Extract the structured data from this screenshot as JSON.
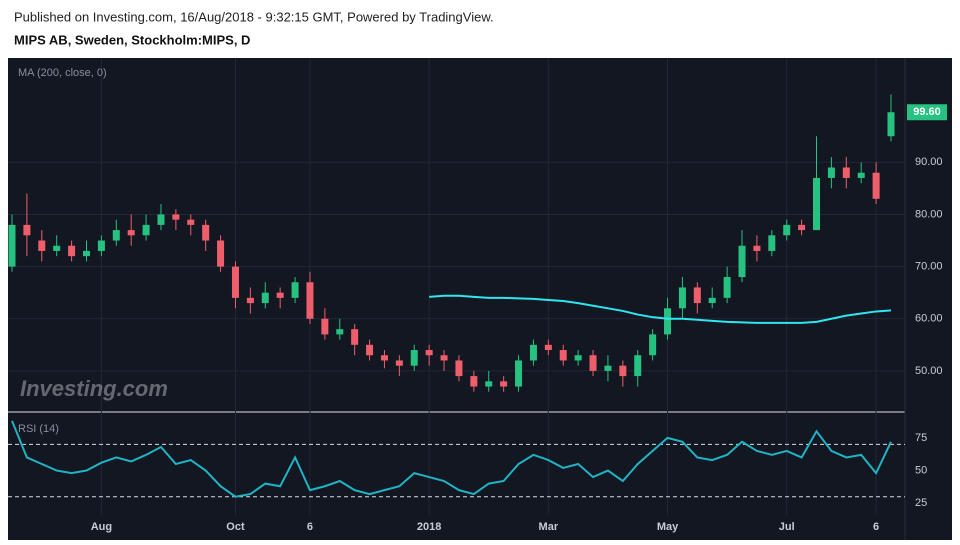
{
  "header": {
    "published": "Published on Investing.com, 16/Aug/2018 - 9:32:15 GMT, Powered by TradingView.",
    "symbol": "MIPS AB, Sweden, Stockholm:MIPS, D"
  },
  "watermark": "Investing.com",
  "chart_data": [
    {
      "type": "candlestick",
      "categories": [
        null,
        null,
        null,
        null,
        null,
        null,
        "Aug",
        null,
        null,
        null,
        null,
        null,
        null,
        null,
        null,
        "Oct",
        null,
        null,
        null,
        null,
        "6",
        null,
        null,
        null,
        null,
        null,
        null,
        null,
        "2018",
        null,
        null,
        null,
        null,
        null,
        null,
        null,
        "Mar",
        null,
        null,
        null,
        null,
        null,
        null,
        null,
        "May",
        null,
        null,
        null,
        null,
        null,
        null,
        null,
        "Jul",
        null,
        null,
        null,
        null,
        null,
        "6",
        null
      ],
      "open": [
        70,
        78,
        75,
        73,
        74,
        72,
        73,
        75,
        77,
        76,
        78,
        80,
        79,
        78,
        75,
        70,
        64,
        63,
        65,
        64,
        67,
        60,
        57,
        58,
        55,
        53,
        52,
        51,
        54,
        53,
        52,
        49,
        47,
        48,
        47,
        52,
        55,
        54,
        52,
        53,
        50,
        51,
        49,
        53,
        57,
        62,
        66,
        63,
        64,
        68,
        74,
        73,
        76,
        78,
        77,
        87,
        89,
        87,
        88,
        95
      ],
      "high": [
        80,
        84,
        77,
        76,
        75,
        75,
        76,
        79,
        80,
        80,
        82,
        81,
        80,
        79,
        76,
        71,
        66,
        67,
        66,
        68,
        69,
        62,
        60,
        59,
        56,
        54,
        53,
        55,
        55,
        54,
        53,
        50,
        50,
        49,
        53,
        56,
        56,
        55,
        54,
        54,
        53,
        52,
        54,
        58,
        64,
        68,
        67,
        66,
        70,
        77,
        76,
        77,
        79,
        79,
        95,
        91,
        91,
        90,
        90,
        103
      ],
      "low": [
        69,
        72,
        71,
        72,
        71,
        71,
        72,
        74,
        74,
        75,
        77,
        77,
        76,
        73,
        69,
        62,
        61,
        62,
        62,
        63,
        59,
        56,
        56,
        53,
        52,
        50.5,
        49,
        50,
        51,
        50,
        48,
        46,
        46,
        46,
        46,
        51,
        53,
        51,
        51,
        49,
        48,
        47,
        47,
        52,
        56,
        60,
        61,
        62,
        63,
        67,
        71,
        72,
        75,
        76,
        77,
        85,
        85,
        86,
        82,
        94
      ],
      "close": [
        78,
        76,
        73,
        74,
        72,
        73,
        75,
        77,
        76,
        78,
        80,
        79,
        78,
        75,
        70,
        64,
        63,
        65,
        64,
        67,
        60,
        57,
        58,
        55,
        53,
        52,
        51,
        54,
        53,
        52,
        49,
        47,
        48,
        47,
        52,
        55,
        54,
        52,
        53,
        50,
        51,
        49,
        53,
        57,
        62,
        66,
        63,
        64,
        68,
        74,
        73,
        76,
        78,
        77,
        87,
        89,
        87,
        88,
        83,
        99.6
      ],
      "last_label": "99.60",
      "up_color": "#26c281",
      "down_color": "#ef5f6b",
      "ylim": [
        42.5,
        110
      ],
      "yticks": [
        {
          "value": 50,
          "label": "50.00"
        },
        {
          "value": 60,
          "label": "60.00"
        },
        {
          "value": 70,
          "label": "70.00"
        },
        {
          "value": 80,
          "label": "80.00"
        },
        {
          "value": 90,
          "label": "90.00"
        }
      ],
      "grid": true,
      "overlay": {
        "name": "MA (200, close, 0)",
        "color": "#2ee6f0",
        "values": [
          null,
          null,
          null,
          null,
          null,
          null,
          null,
          null,
          null,
          null,
          null,
          null,
          null,
          null,
          null,
          null,
          null,
          null,
          null,
          null,
          null,
          null,
          null,
          null,
          null,
          null,
          null,
          null,
          64.2,
          64.4,
          64.4,
          64.2,
          64,
          64,
          63.9,
          63.8,
          63.6,
          63.4,
          63,
          62.5,
          62,
          61.5,
          60.8,
          60.3,
          60,
          60,
          59.8,
          59.6,
          59.4,
          59.3,
          59.2,
          59.2,
          59.2,
          59.2,
          59.4,
          60,
          60.6,
          61,
          61.4,
          61.6
        ]
      }
    },
    {
      "type": "line",
      "name": "RSI (14)",
      "color": "#1fb3c4",
      "values": [
        88,
        60,
        55,
        50,
        48,
        50,
        56,
        60,
        57,
        62,
        68,
        55,
        58,
        50,
        38,
        30,
        32,
        40,
        38,
        60,
        35,
        38,
        42,
        35,
        32,
        35,
        38,
        48,
        45,
        42,
        35,
        32,
        40,
        42,
        55,
        62,
        58,
        52,
        55,
        45,
        50,
        42,
        55,
        65,
        75,
        72,
        60,
        58,
        62,
        72,
        65,
        62,
        65,
        60,
        80,
        65,
        60,
        62,
        48,
        72
      ],
      "ylim": [
        16,
        94
      ],
      "yticks": [
        25,
        50,
        75
      ],
      "levels": [
        30,
        70
      ]
    }
  ]
}
